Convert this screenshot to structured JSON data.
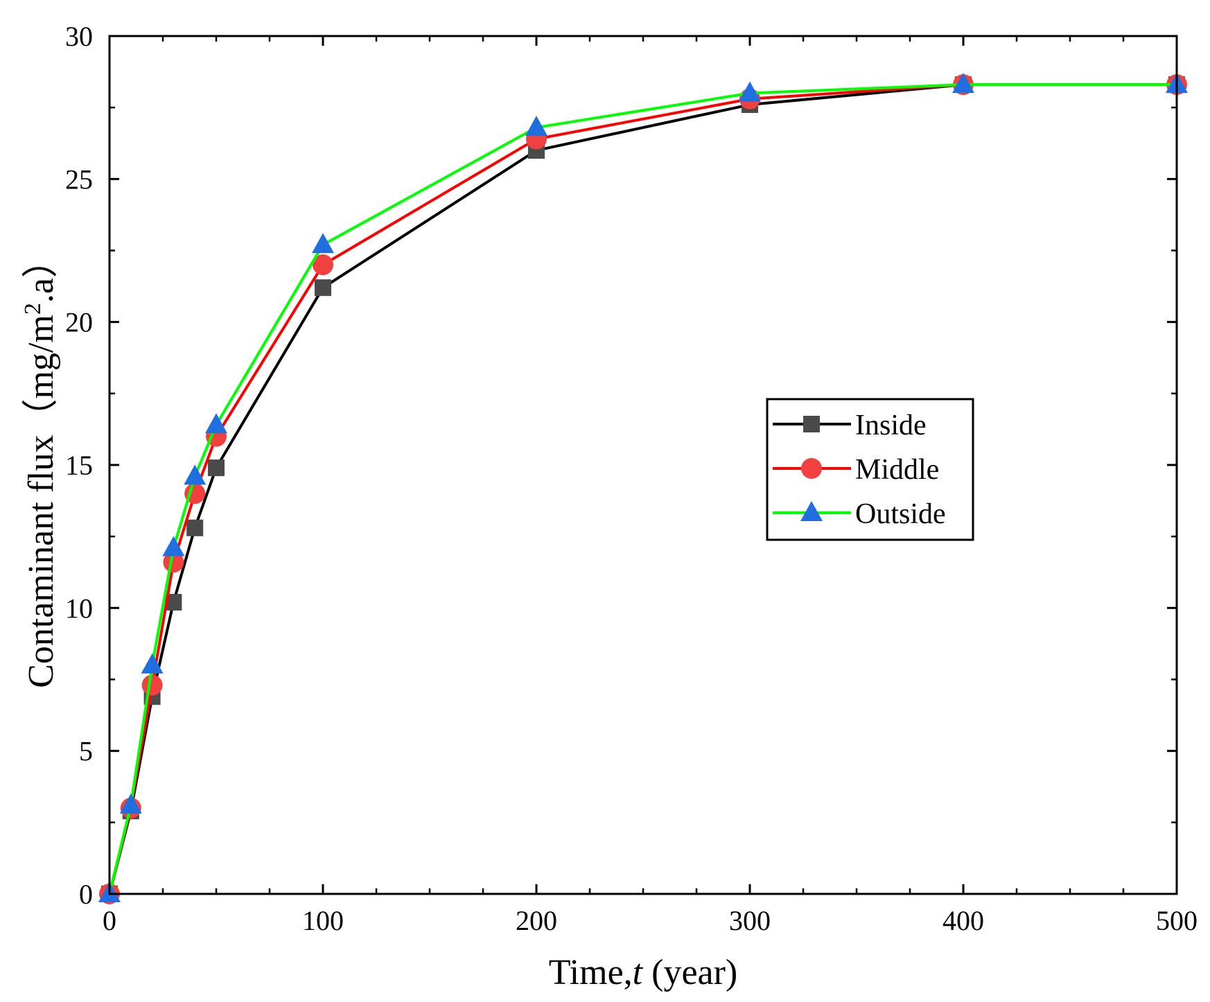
{
  "chart_data": {
    "type": "line",
    "title": "",
    "xlabel": {
      "prefix": "Time,",
      "italic": "t",
      "suffix": " (year)"
    },
    "ylabel": {
      "prefix": "Contaminant flux（mg/m",
      "sup": "2",
      "suffix": ".a）"
    },
    "xlim": [
      0,
      500
    ],
    "ylim": [
      0,
      30
    ],
    "x_major_ticks": [
      0,
      100,
      200,
      300,
      400,
      500
    ],
    "x_tick_labels": [
      "0",
      "100",
      "200",
      "300",
      "400",
      "500"
    ],
    "x_minor_step": 25,
    "y_major_ticks": [
      0,
      5,
      10,
      15,
      20,
      25,
      30
    ],
    "y_tick_labels": [
      "0",
      "5",
      "10",
      "15",
      "20",
      "25",
      "30"
    ],
    "y_minor_step": 2.5,
    "grid": false,
    "legend_position": "center-right",
    "x": [
      0,
      10,
      20,
      30,
      40,
      50,
      100,
      200,
      300,
      400,
      500
    ],
    "series": [
      {
        "name": "Inside",
        "marker": "square",
        "line_color": "#000000",
        "marker_color": "#4a4a4a",
        "values": [
          0,
          2.9,
          6.9,
          10.2,
          12.8,
          14.9,
          21.2,
          26.0,
          27.6,
          28.3,
          28.3
        ]
      },
      {
        "name": "Middle",
        "marker": "circle",
        "line_color": "#ff0000",
        "marker_color": "#f04040",
        "values": [
          0,
          3.0,
          7.3,
          11.6,
          14.0,
          16.0,
          22.0,
          26.4,
          27.8,
          28.3,
          28.3
        ]
      },
      {
        "name": "Outside",
        "marker": "triangle",
        "line_color": "#00ff00",
        "marker_color": "#1f6fe0",
        "values": [
          0,
          3.1,
          8.0,
          12.1,
          14.6,
          16.4,
          22.7,
          26.8,
          28.0,
          28.3,
          28.3
        ]
      }
    ]
  }
}
